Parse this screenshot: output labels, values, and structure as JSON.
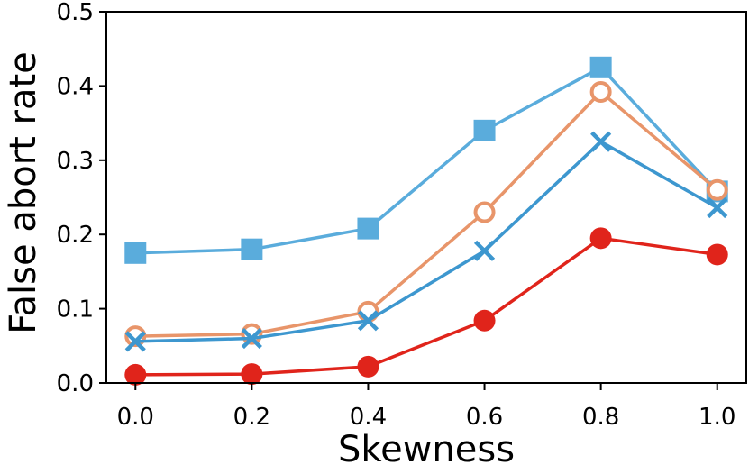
{
  "chart_data": {
    "type": "line",
    "title": "",
    "xlabel": "Skewness",
    "ylabel": "False abort rate",
    "xlim": [
      -0.05,
      1.05
    ],
    "ylim": [
      0.0,
      0.5
    ],
    "x": [
      0.0,
      0.2,
      0.4,
      0.6,
      0.8,
      1.0
    ],
    "xticks": [
      "0.0",
      "0.2",
      "0.4",
      "0.6",
      "0.8",
      "1.0"
    ],
    "yticks": [
      "0.0",
      "0.1",
      "0.2",
      "0.3",
      "0.4",
      "0.5"
    ],
    "grid": false,
    "legend": "none",
    "series": [
      {
        "name": "square-series",
        "marker": "square",
        "color": "#5aacdc",
        "values": [
          0.175,
          0.18,
          0.208,
          0.34,
          0.425,
          0.258
        ]
      },
      {
        "name": "circle-open-series",
        "marker": "circle-open",
        "color": "#e8956a",
        "values": [
          0.063,
          0.066,
          0.096,
          0.23,
          0.392,
          0.26
        ]
      },
      {
        "name": "x-series",
        "marker": "x",
        "color": "#3d97cf",
        "values": [
          0.056,
          0.06,
          0.084,
          0.178,
          0.325,
          0.236
        ]
      },
      {
        "name": "circle-filled-series",
        "marker": "circle-filled",
        "color": "#e0241b",
        "values": [
          0.011,
          0.012,
          0.022,
          0.084,
          0.195,
          0.173
        ]
      }
    ]
  }
}
